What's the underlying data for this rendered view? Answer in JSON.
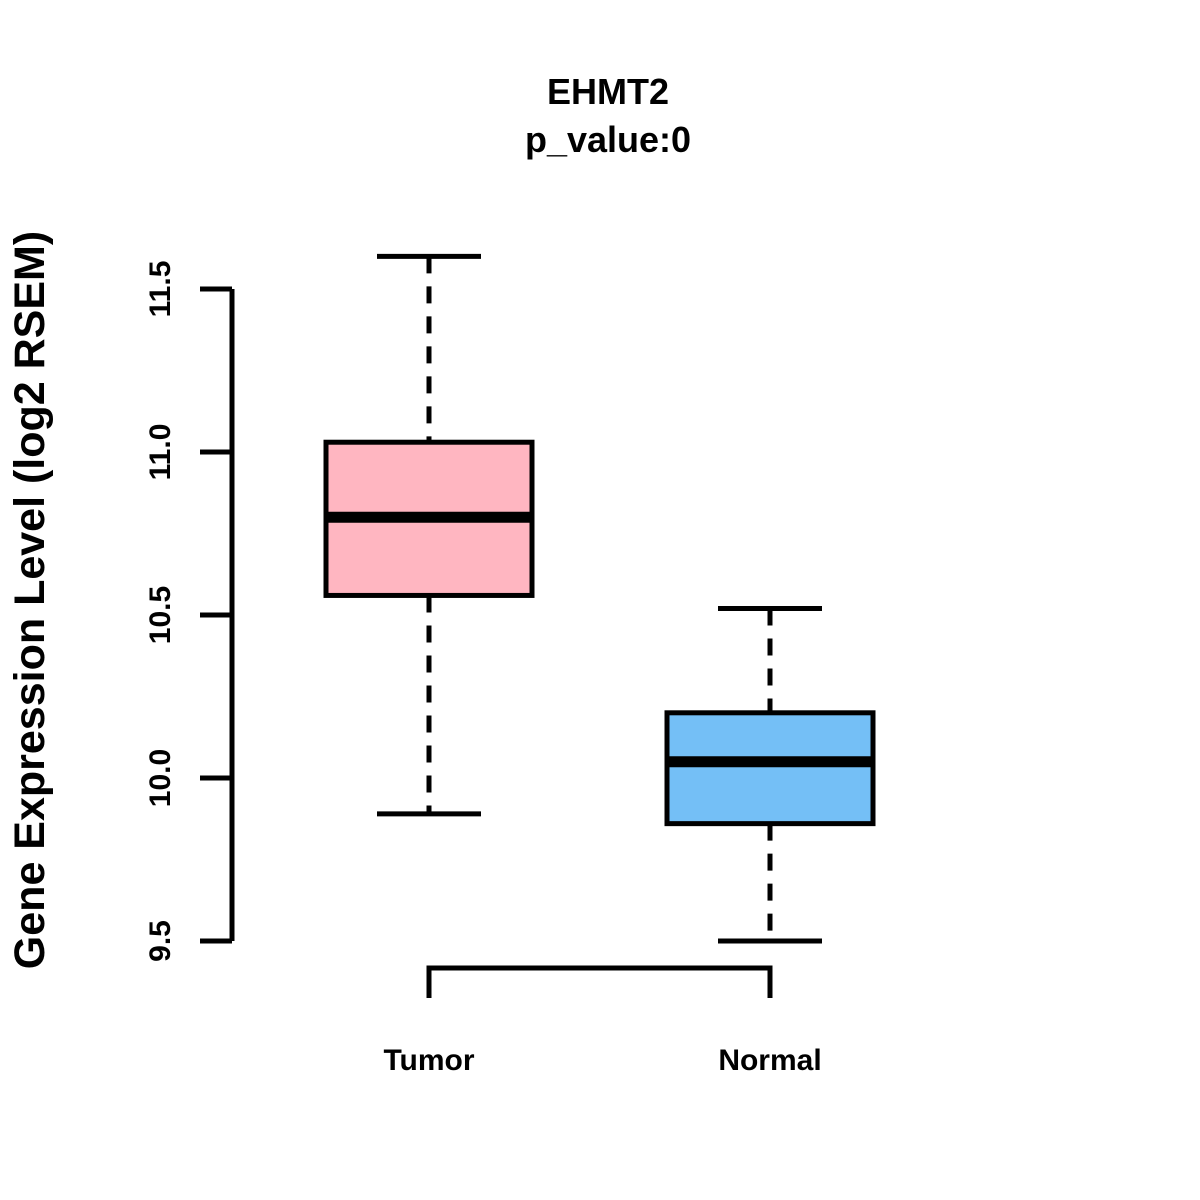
{
  "chart_data": {
    "type": "boxplot",
    "title": "EHMT2",
    "subtitle": "p_value:0",
    "ylabel": "Gene Expression Level (log2 RSEM)",
    "xlabel": "",
    "ylim": [
      9.5,
      11.5
    ],
    "yticks": [
      9.5,
      10.0,
      10.5,
      11.0,
      11.5
    ],
    "ytick_labels": [
      "9.5",
      "10.0",
      "10.5",
      "11.0",
      "11.5"
    ],
    "categories": [
      "Tumor",
      "Normal"
    ],
    "grid": "off",
    "legend": "none",
    "series": [
      {
        "name": "Tumor",
        "lower_whisker": 9.89,
        "q1": 10.56,
        "median": 10.8,
        "q3": 11.03,
        "upper_whisker": 11.6,
        "outliers": [],
        "fill_color": "#FFB6C1"
      },
      {
        "name": "Normal",
        "lower_whisker": 9.5,
        "q1": 9.86,
        "median": 10.05,
        "q3": 10.2,
        "upper_whisker": 10.52,
        "outliers": [],
        "fill_color": "#74BFF6"
      }
    ],
    "colors": {
      "box_border": "#000000",
      "median_line": "#000000",
      "axis": "#000000",
      "background": "#FFFFFF"
    }
  }
}
